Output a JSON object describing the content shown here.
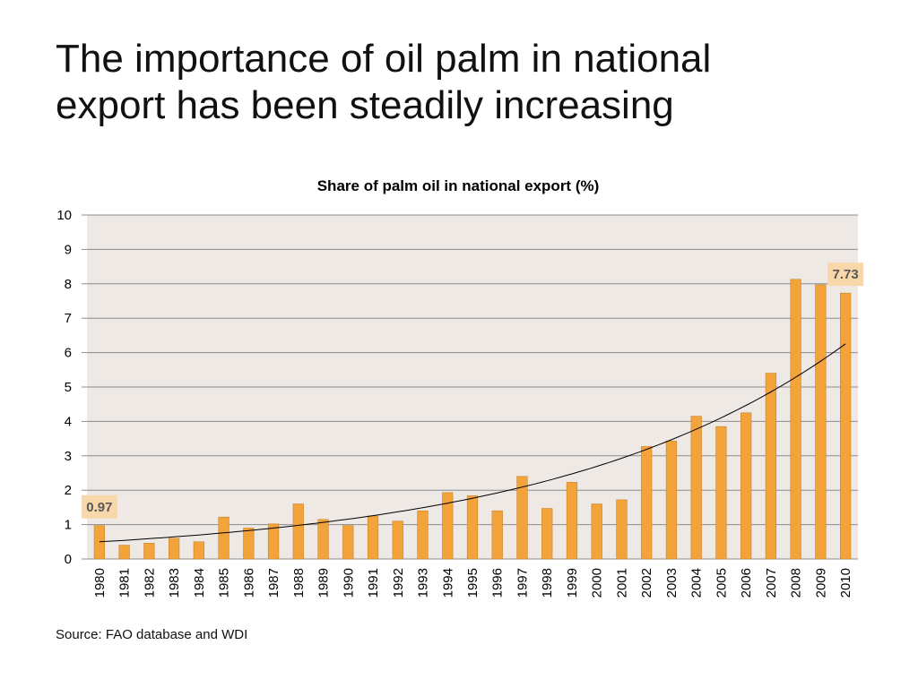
{
  "slide": {
    "title_line1": "The importance of oil palm in national",
    "title_line2": "export has been steadily increasing",
    "source": "Source:  FAO database and WDI"
  },
  "colors": {
    "bar_fill": "#F2A33A",
    "bar_stroke": "#C9832A",
    "plot_background": "#EFE9E6",
    "gridline": "#8C8C8C",
    "trendline": "#000000",
    "data_label_background": "#F8D7AA"
  },
  "chart_data": {
    "type": "bar",
    "title": "Share of palm oil in national export (%)",
    "xlabel": "",
    "ylabel": "",
    "ylim": [
      0,
      10
    ],
    "yticks": [
      0,
      1,
      2,
      3,
      4,
      5,
      6,
      7,
      8,
      9,
      10
    ],
    "grid": true,
    "legend": "none",
    "trendline": "exponential",
    "categories": [
      "1980",
      "1981",
      "1982",
      "1983",
      "1984",
      "1985",
      "1986",
      "1987",
      "1988",
      "1989",
      "1990",
      "1991",
      "1992",
      "1993",
      "1994",
      "1995",
      "1996",
      "1997",
      "1998",
      "1999",
      "2000",
      "2001",
      "2002",
      "2003",
      "2004",
      "2005",
      "2006",
      "2007",
      "2008",
      "2009",
      "2010"
    ],
    "values": [
      0.97,
      0.4,
      0.46,
      0.6,
      0.5,
      1.22,
      0.9,
      1.02,
      1.6,
      1.15,
      0.97,
      1.25,
      1.1,
      1.4,
      1.93,
      1.84,
      1.4,
      2.4,
      1.47,
      2.23,
      1.6,
      1.72,
      3.27,
      3.43,
      4.15,
      3.85,
      4.25,
      5.4,
      8.13,
      7.97,
      7.73
    ],
    "data_labels": [
      {
        "category": "1980",
        "text": "0.97"
      },
      {
        "category": "2010",
        "text": "7.73"
      }
    ]
  }
}
